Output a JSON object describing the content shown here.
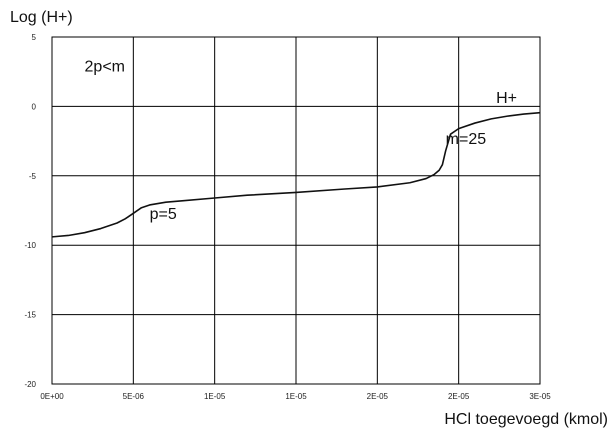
{
  "chart_data": {
    "type": "line",
    "title": "",
    "xlabel": "HCl toegevoegd (kmol)",
    "ylabel": "Log (H+)",
    "xlim": [
      0,
      3e-05
    ],
    "ylim": [
      -20,
      5
    ],
    "grid": true,
    "x_ticks": [
      0,
      5e-06,
      1e-05,
      1.5e-05,
      2e-05,
      2.5e-05,
      3e-05
    ],
    "x_tick_labels": [
      "0E+00",
      "5E-06",
      "1E-05",
      "1E-05",
      "2E-05",
      "2E-05",
      "3E-05"
    ],
    "y_ticks": [
      5,
      0,
      -5,
      -10,
      -15,
      -20
    ],
    "y_tick_labels": [
      "5",
      "0",
      "-5",
      "-10",
      "-15",
      "-20"
    ],
    "series": [
      {
        "name": "H+",
        "x": [
          0,
          1e-06,
          2e-06,
          3e-06,
          4e-06,
          4.5e-06,
          5e-06,
          5.5e-06,
          6e-06,
          7e-06,
          8e-06,
          1e-05,
          1.2e-05,
          1.5e-05,
          1.8e-05,
          2e-05,
          2.2e-05,
          2.3e-05,
          2.35e-05,
          2.38e-05,
          2.4e-05,
          2.42e-05,
          2.45e-05,
          2.5e-05,
          2.6e-05,
          2.7e-05,
          2.8e-05,
          2.9e-05,
          3e-05
        ],
        "y": [
          -9.4,
          -9.3,
          -9.1,
          -8.8,
          -8.4,
          -8.1,
          -7.7,
          -7.3,
          -7.1,
          -6.9,
          -6.8,
          -6.6,
          -6.4,
          -6.2,
          -5.95,
          -5.8,
          -5.5,
          -5.2,
          -4.9,
          -4.6,
          -4.2,
          -3.2,
          -2.0,
          -1.6,
          -1.2,
          -0.9,
          -0.7,
          -0.55,
          -0.45
        ]
      }
    ],
    "annotations": [
      {
        "text": "2p<m",
        "x": 2e-06,
        "y": 2.5
      },
      {
        "text": "p=5",
        "x": 6e-06,
        "y": -8.1
      },
      {
        "text": "m=25",
        "x": 2.42e-05,
        "y": -2.7
      },
      {
        "text": "H+",
        "x": 2.73e-05,
        "y": 0.25
      }
    ]
  }
}
